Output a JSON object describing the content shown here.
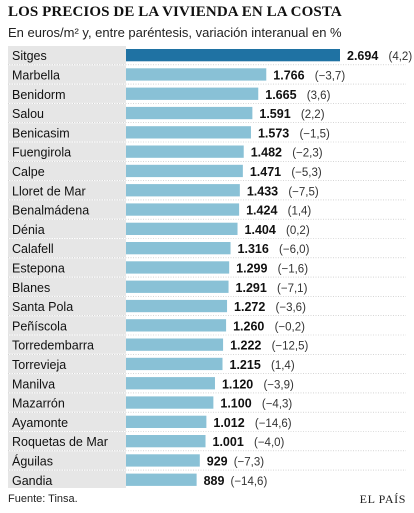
{
  "header": {
    "title": "LOS PRECIOS DE LA VIVIENDA EN LA COSTA",
    "subtitle": "En euros/m² y, entre paréntesis, variación interanual en %"
  },
  "footer": {
    "source": "Fuente: Tinsa.",
    "brand": "EL PAÍS"
  },
  "chart_data": {
    "type": "bar",
    "orientation": "horizontal",
    "title": "LOS PRECIOS DE LA VIVIENDA EN LA COSTA",
    "subtitle": "En euros/m² y, entre paréntesis, variación interanual en %",
    "categories": [
      "Sitges",
      "Marbella",
      "Benidorm",
      "Salou",
      "Benicasim",
      "Fuengirola",
      "Calpe",
      "Lloret de Mar",
      "Benalmádena",
      "Dénia",
      "Calafell",
      "Estepona",
      "Blanes",
      "Santa Pola",
      "Peñíscola",
      "Torredembarra",
      "Torrevieja",
      "Manilva",
      "Mazarrón",
      "Ayamonte",
      "Roquetas de Mar",
      "Águilas",
      "Gandia"
    ],
    "values": [
      2694,
      1766,
      1665,
      1591,
      1573,
      1482,
      1471,
      1433,
      1424,
      1404,
      1316,
      1299,
      1291,
      1272,
      1260,
      1222,
      1215,
      1120,
      1100,
      1012,
      1001,
      929,
      889
    ],
    "value_labels": [
      "2.694",
      "1.766",
      "1.665",
      "1.591",
      "1.573",
      "1.482",
      "1.471",
      "1.433",
      "1.424",
      "1.404",
      "1.316",
      "1.299",
      "1.291",
      "1.272",
      "1.260",
      "1.222",
      "1.215",
      "1.120",
      "1.100",
      "1.012",
      "1.001",
      "929",
      "889"
    ],
    "variation_labels": [
      "(4,2)",
      "(−3,7)",
      "(3,6)",
      "(2,2)",
      "(−1,5)",
      "(−2,3)",
      "(−5,3)",
      "(−7,5)",
      "(1,4)",
      "(0,2)",
      "(−6,0)",
      "(−1,6)",
      "(−7,1)",
      "(−3,6)",
      "(−0,2)",
      "(−12,5)",
      "(1,4)",
      "(−3,9)",
      "(−4,3)",
      "(−14,6)",
      "(−4,0)",
      "(−7,3)",
      "(−14,6)"
    ],
    "xlim": [
      0,
      2694
    ],
    "colors": {
      "highlight": "#1f72a3",
      "bar": "#89c1d6",
      "row_shade": "#e6e6e6",
      "separator": "#bdbdbd"
    }
  }
}
